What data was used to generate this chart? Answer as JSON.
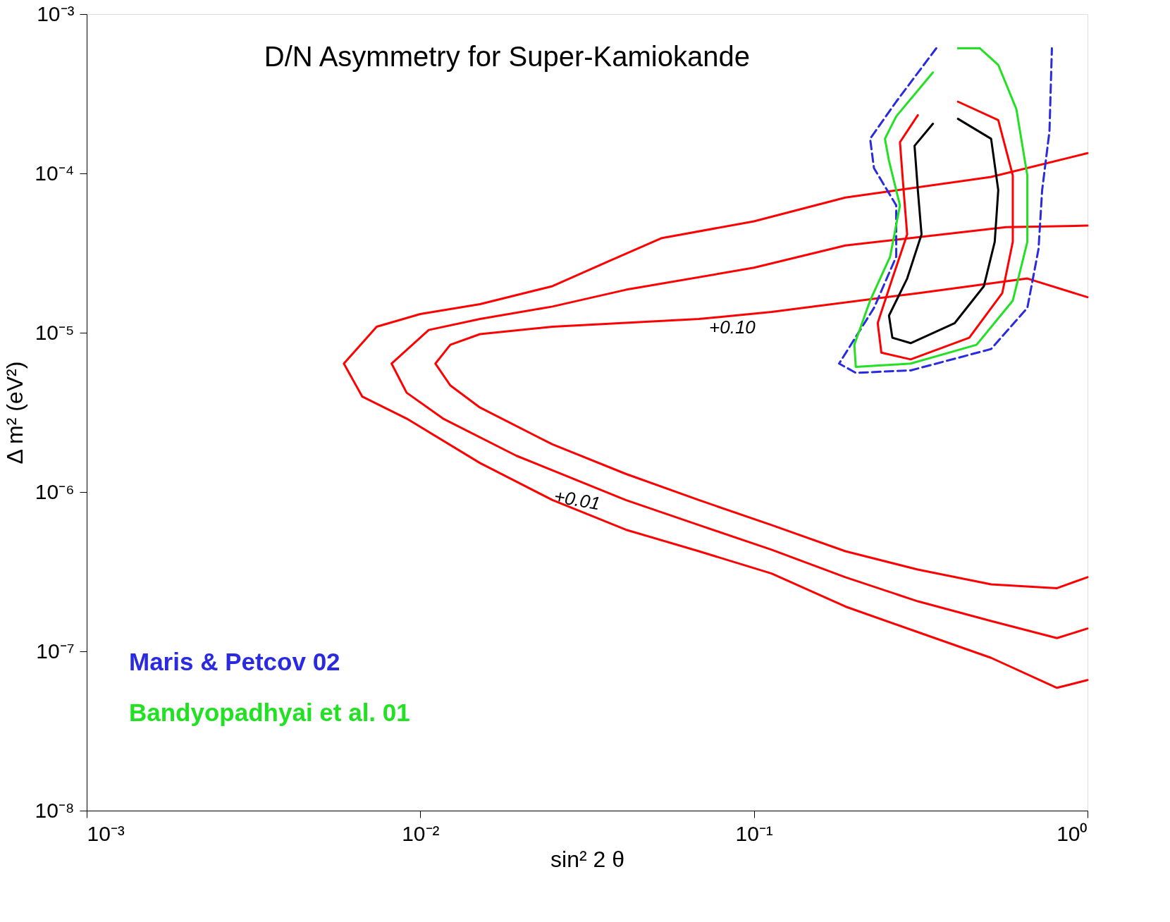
{
  "chart_data": {
    "type": "line",
    "title": "D/N Asymmetry for Super-Kamiokande",
    "xlabel": "sin² 2 θ",
    "ylabel": "Δ m² (eV²)",
    "log": "xy",
    "xlim": [
      0.001,
      1
    ],
    "ylim": [
      1e-08,
      0.001
    ],
    "xticks": [
      {
        "value": 0.001,
        "label": "10⁻³"
      },
      {
        "value": 0.01,
        "label": "10⁻²"
      },
      {
        "value": 0.1,
        "label": "10⁻¹"
      },
      {
        "value": 1,
        "label": "10⁰"
      }
    ],
    "yticks": [
      {
        "value": 1e-08,
        "label": "10⁻⁸"
      },
      {
        "value": 1e-07,
        "label": "10⁻⁷"
      },
      {
        "value": 1e-06,
        "label": "10⁻⁶"
      },
      {
        "value": 1e-05,
        "label": "10⁻⁵"
      },
      {
        "value": 0.0001,
        "label": "10⁻⁴"
      },
      {
        "value": 0.001,
        "label": "10⁻³"
      }
    ],
    "grid": false,
    "legend": "bottom left",
    "marker": "none",
    "annotations": [
      "+0.10",
      "+0.01"
    ],
    "series": [
      {
        "color": "#ff0000",
        "line_style": "solid",
        "x": [
          1.0,
          0.514,
          0.188,
          0.1,
          0.053,
          0.0373,
          0.0249,
          0.0151,
          0.01,
          0.0074,
          0.0059,
          0.0067,
          0.0091,
          0.0151,
          0.0249,
          0.0413,
          0.0684,
          0.113,
          0.188,
          0.31,
          0.514,
          0.81,
          1.0
        ],
        "values": [
          0.000134,
          9.5e-05,
          7.05e-05,
          5e-05,
          3.93e-05,
          2.85e-05,
          1.96e-05,
          1.51e-05,
          1.31e-05,
          1.09e-05,
          6.4e-06,
          3.97e-06,
          2.89e-06,
          1.52e-06,
          8.9e-07,
          5.8e-07,
          4.25e-07,
          3.08e-07,
          1.91e-07,
          1.32e-07,
          9.1e-08,
          5.9e-08,
          6.6e-08
        ]
      },
      {
        "color": "#ff0000",
        "line_style": "solid",
        "x": [
          1.0,
          0.57,
          0.188,
          0.1,
          0.0413,
          0.0249,
          0.0151,
          0.0106,
          0.0082,
          0.0091,
          0.0117,
          0.0194,
          0.0413,
          0.0684,
          0.113,
          0.188,
          0.31,
          0.514,
          0.81,
          1.0
        ],
        "values": [
          4.7e-05,
          4.6e-05,
          3.53e-05,
          2.56e-05,
          1.86e-05,
          1.46e-05,
          1.22e-05,
          1.04e-05,
          6.4e-06,
          4.2e-06,
          2.89e-06,
          1.69e-06,
          8.9e-07,
          6.2e-07,
          4.34e-07,
          2.92e-07,
          2.06e-07,
          1.55e-07,
          1.21e-07,
          1.39e-07
        ]
      },
      {
        "color": "#ff0000",
        "line_style": "solid",
        "x": [
          1.0,
          0.66,
          0.31,
          0.113,
          0.0684,
          0.0249,
          0.0151,
          0.0123,
          0.0111,
          0.0123,
          0.0151,
          0.0249,
          0.0413,
          0.0684,
          0.113,
          0.188,
          0.31,
          0.514,
          0.81,
          1.0
        ],
        "values": [
          1.67e-05,
          2.19e-05,
          1.77e-05,
          1.35e-05,
          1.22e-05,
          1.09e-05,
          9.8e-06,
          8.4e-06,
          6.4e-06,
          4.67e-06,
          3.39e-06,
          1.99e-06,
          1.3e-06,
          8.9e-07,
          6.2e-07,
          4.25e-07,
          3.26e-07,
          2.63e-07,
          2.49e-07,
          2.92e-07
        ]
      },
      {
        "name": "Maris & Petcov 02",
        "color": "#2a2ae0",
        "line_style": "dashed",
        "x": [
          0.352,
          0.267,
          0.223,
          0.229,
          0.267,
          0.267,
          0.229,
          0.18,
          0.202,
          0.295,
          0.514,
          0.66,
          0.713,
          0.731,
          0.769,
          0.782
        ],
        "values": [
          0.00061,
          0.000282,
          0.000165,
          0.000108,
          6.3e-05,
          3e-05,
          1.43e-05,
          6.4e-06,
          5.6e-06,
          5.8e-06,
          7.9e-06,
          1.43e-05,
          3.35e-05,
          7.85e-05,
          0.000184,
          0.00061
        ]
      },
      {
        "name": "Bandyopadhyai et al. 01",
        "color": "#22e022",
        "line_style": "solid",
        "x": [
          0.409,
          0.476,
          0.54,
          0.612,
          0.66,
          0.66,
          0.597,
          0.465,
          0.295,
          0.202,
          0.2,
          0.223,
          0.256,
          0.274,
          0.254,
          0.247,
          0.267,
          0.344
        ],
        "values": [
          0.00061,
          0.00061,
          0.00048,
          0.000253,
          9.7e-05,
          3.72e-05,
          1.59e-05,
          8.4e-06,
          6.4e-06,
          6.1e-06,
          8.4e-06,
          1.59e-05,
          3e-05,
          6.3e-05,
          0.00012,
          0.000165,
          0.000228,
          0.00043
        ]
      },
      {
        "color": "#ff0000",
        "line_style": "solid",
        "x": [
          0.409,
          0.54,
          0.597,
          0.597,
          0.555,
          0.442,
          0.295,
          0.241,
          0.235,
          0.26,
          0.288,
          0.281,
          0.274,
          0.31
        ],
        "values": [
          0.000282,
          0.000216,
          9.7e-05,
          3.72e-05,
          1.77e-05,
          9.3e-06,
          6.8e-06,
          7.5e-06,
          1.15e-05,
          2.19e-05,
          4.14e-05,
          7.85e-05,
          0.000157,
          0.000232
        ]
      },
      {
        "color": "#000000",
        "line_style": "solid",
        "x": [
          0.409,
          0.514,
          0.54,
          0.527,
          0.489,
          0.4,
          0.295,
          0.26,
          0.254,
          0.288,
          0.318,
          0.31,
          0.303,
          0.344
        ],
        "values": [
          0.00022,
          0.000165,
          7.85e-05,
          3.72e-05,
          1.96e-05,
          1.15e-05,
          8.6e-06,
          9.3e-06,
          1.28e-05,
          2.19e-05,
          4.14e-05,
          7.85e-05,
          0.000149,
          0.000205
        ]
      }
    ]
  }
}
